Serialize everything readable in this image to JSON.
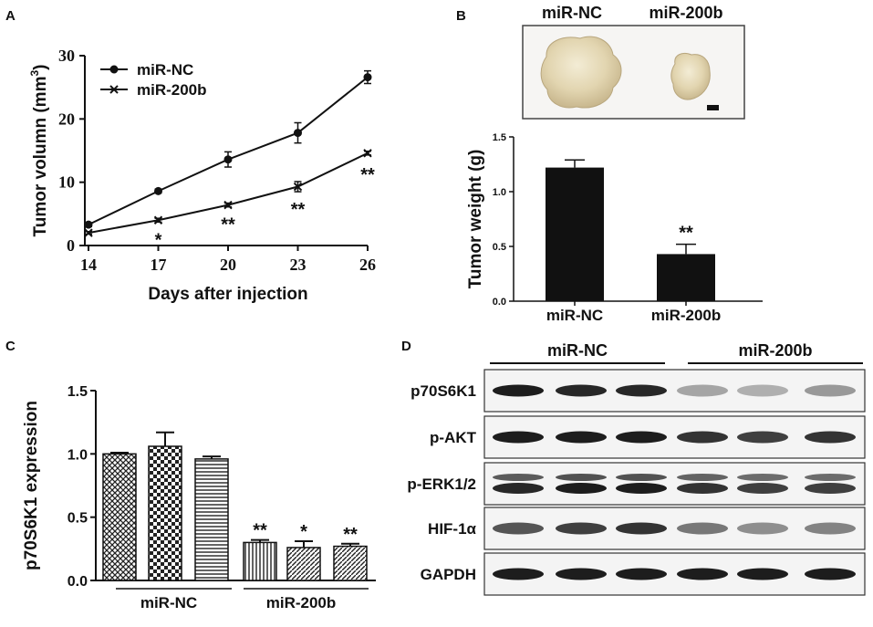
{
  "panels": {
    "A": "A",
    "B": "B",
    "C": "C",
    "D": "D"
  },
  "chart_data": [
    {
      "panel": "A",
      "type": "line",
      "xlabel": "Days after injection",
      "ylabel": "Tumor volumn (mm",
      "ylabel_sup": "3",
      "ylabel_close": ")",
      "x": [
        14,
        17,
        20,
        23,
        26
      ],
      "xticks": [
        "14",
        "17",
        "20",
        "23",
        "26"
      ],
      "ylim": [
        0,
        30
      ],
      "yticks": [
        "0",
        "10",
        "20",
        "30"
      ],
      "series": [
        {
          "name": "miR-NC",
          "marker": "circle",
          "values": [
            3.3,
            8.6,
            13.6,
            17.8,
            26.6
          ],
          "errors": [
            0.3,
            0.3,
            1.2,
            1.6,
            1.0
          ]
        },
        {
          "name": "miR-200b",
          "marker": "x",
          "values": [
            2.0,
            4.0,
            6.4,
            9.3,
            14.6
          ],
          "errors": [
            0.2,
            0.3,
            0.3,
            0.8,
            0.3
          ]
        }
      ],
      "annotations": [
        {
          "x": 17,
          "text": "*"
        },
        {
          "x": 20,
          "text": "**"
        },
        {
          "x": 23,
          "text": "**"
        },
        {
          "x": 26,
          "text": "**"
        }
      ],
      "legend": "top-left",
      "grid": false
    },
    {
      "panel": "B",
      "type": "bar",
      "ylabel": "Tumor weight (g)",
      "categories": [
        "miR-NC",
        "miR-200b"
      ],
      "values": [
        1.22,
        0.43
      ],
      "errors": [
        0.07,
        0.09
      ],
      "ylim": [
        0,
        1.5
      ],
      "yticks": [
        "0.0",
        "0.5",
        "1.0",
        "1.5"
      ],
      "annotations": [
        {
          "category": "miR-200b",
          "text": "**"
        }
      ],
      "grid": false
    },
    {
      "panel": "C",
      "type": "bar",
      "ylabel": "p70S6K1 expression",
      "groups": [
        "miR-NC",
        "miR-200b"
      ],
      "values": [
        1.0,
        1.06,
        0.96,
        0.3,
        0.26,
        0.27
      ],
      "errors": [
        0.01,
        0.11,
        0.02,
        0.02,
        0.05,
        0.02
      ],
      "patterns": [
        "crosshatch",
        "checker",
        "hlines",
        "vlines",
        "diag",
        "diag"
      ],
      "annotations": [
        "",
        "",
        "",
        "**",
        "*",
        "**"
      ],
      "ylim": [
        0,
        1.5
      ],
      "yticks": [
        "0.0",
        "0.5",
        "1.0",
        "1.5"
      ],
      "grid": false
    }
  ],
  "photo": {
    "labels": [
      "miR-NC",
      "miR-200b"
    ]
  },
  "blot": {
    "groups": [
      "miR-NC",
      "miR-200b"
    ],
    "rows": [
      {
        "label": "p70S6K1",
        "intensity": [
          0.95,
          0.9,
          0.9,
          0.35,
          0.3,
          0.4
        ]
      },
      {
        "label": "p-AKT",
        "intensity": [
          0.95,
          0.95,
          0.95,
          0.85,
          0.8,
          0.85
        ]
      },
      {
        "label": "p-ERK1/2",
        "intensity": [
          0.9,
          0.95,
          0.95,
          0.85,
          0.8,
          0.8
        ]
      },
      {
        "label": "HIF-1α",
        "intensity": [
          0.7,
          0.8,
          0.85,
          0.55,
          0.45,
          0.5
        ]
      },
      {
        "label": "GAPDH",
        "intensity": [
          0.95,
          0.95,
          0.95,
          0.95,
          0.95,
          0.95
        ]
      }
    ]
  }
}
